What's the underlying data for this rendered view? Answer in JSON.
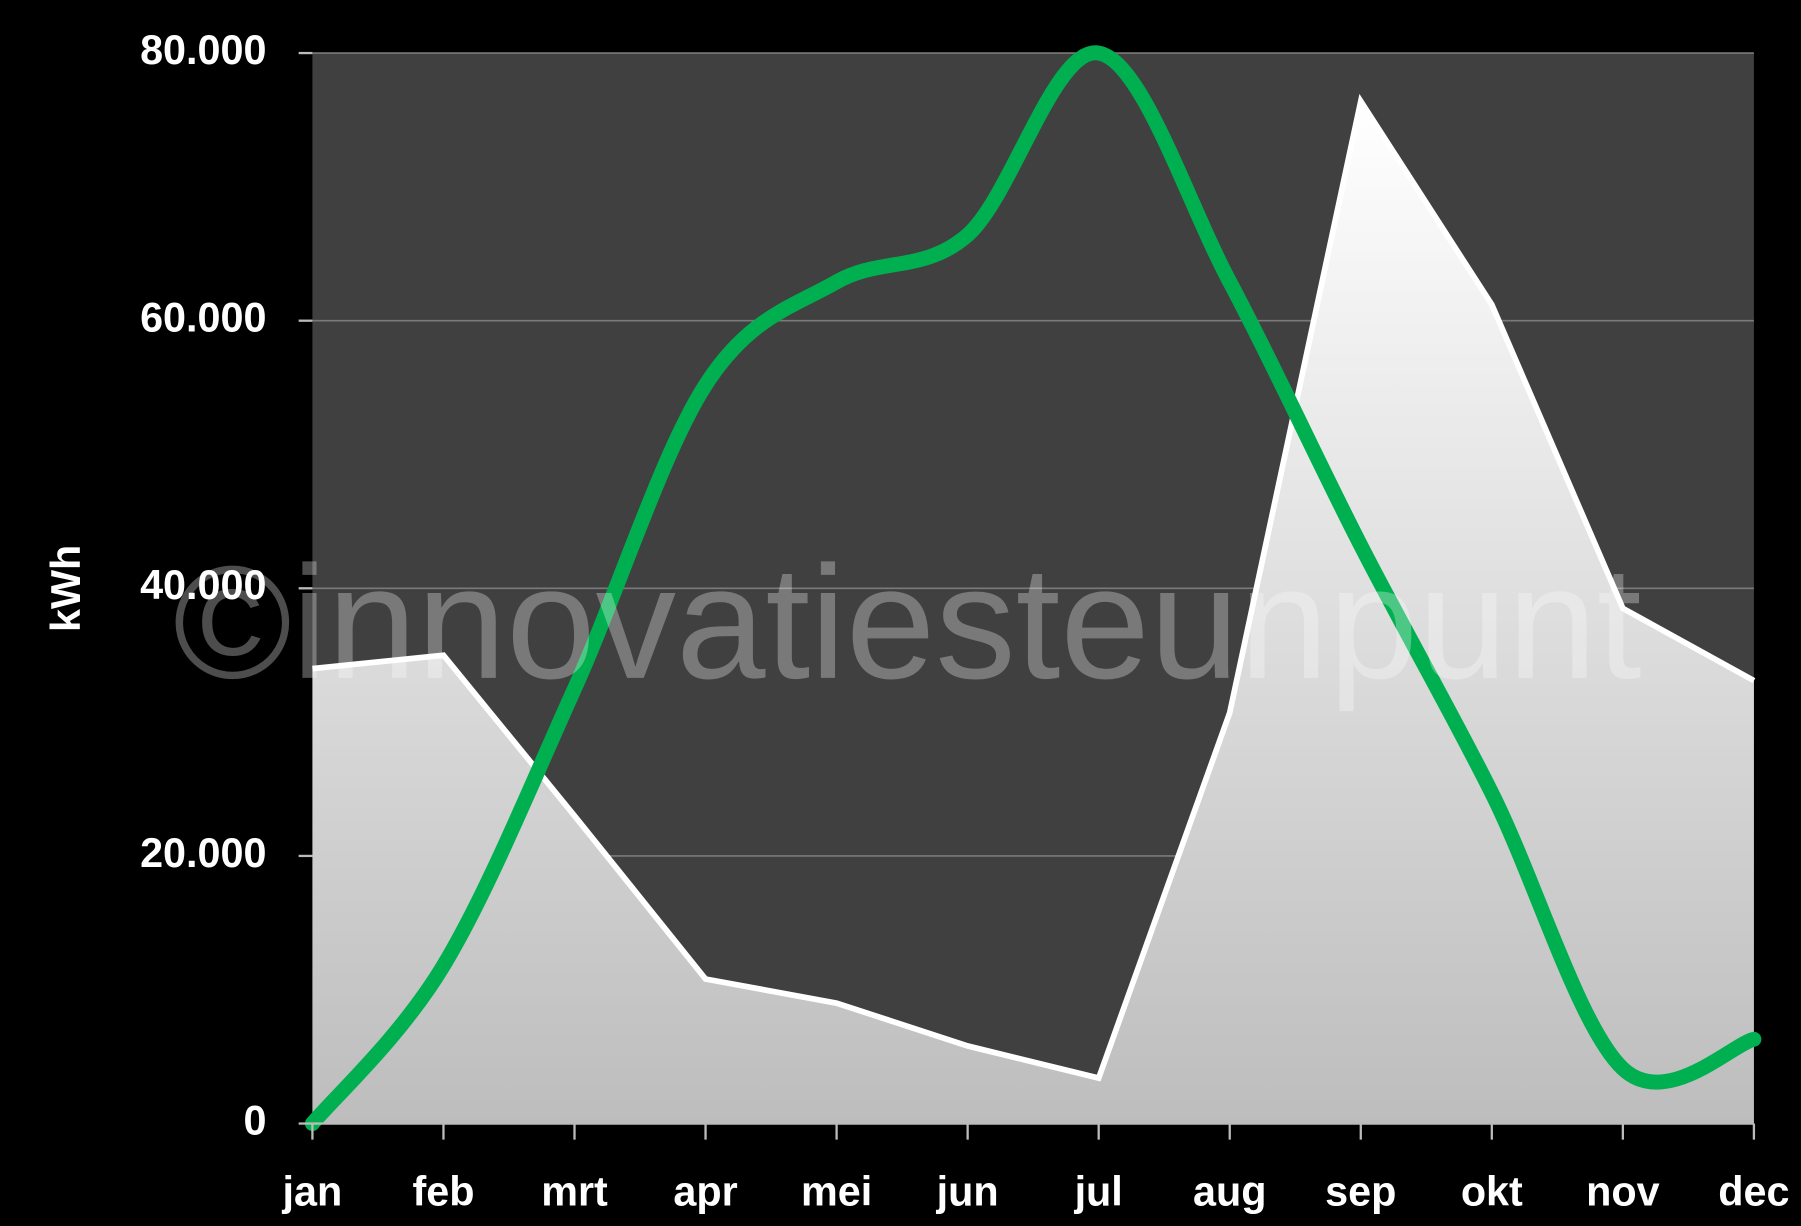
{
  "chart_data": {
    "type": "line",
    "y_label": "kWh",
    "watermark": "©innovatiesteunpunt",
    "categories": [
      "jan",
      "feb",
      "mrt",
      "apr",
      "mei",
      "jun",
      "jul",
      "aug",
      "sep",
      "okt",
      "nov",
      "dec"
    ],
    "series": [
      {
        "color": "#ffffff",
        "fill": true,
        "smooth": false,
        "values": [
          34000,
          35000,
          23000,
          10800,
          9000,
          5800,
          3400,
          30700,
          76400,
          61200,
          38500,
          33100
        ]
      },
      {
        "color": "#00b050",
        "fill": false,
        "smooth": true,
        "values": [
          0,
          11800,
          32500,
          55200,
          62900,
          66400,
          80000,
          62900,
          43200,
          24700,
          4100,
          6300
        ]
      }
    ],
    "ylim": [
      0,
      80000
    ],
    "yticks": [
      0,
      {
        "value": 20000,
        "label": "20.000"
      },
      {
        "value": 40000,
        "label": "40.000"
      },
      {
        "value": 60000,
        "label": "60.000"
      },
      {
        "value": 80000,
        "label": "80.000"
      }
    ],
    "grid": true
  }
}
